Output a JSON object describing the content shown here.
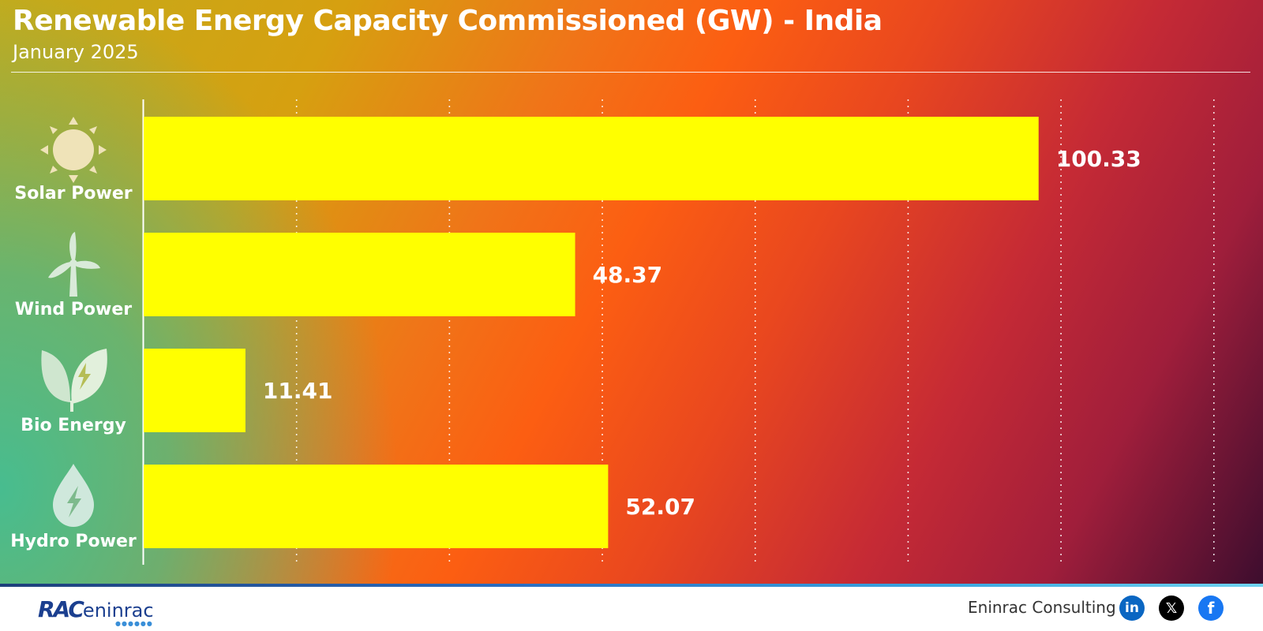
{
  "chart_data": {
    "type": "bar",
    "orientation": "horizontal",
    "title": "Renewable Energy Capacity Commissioned (GW) - India",
    "subtitle": "January 2025",
    "categories": [
      "Solar Power",
      "Wind Power",
      "Bio Energy",
      "Hydro Power"
    ],
    "icons": [
      "sun-icon",
      "wind-turbine-icon",
      "leaf-bolt-icon",
      "water-drop-bolt-icon"
    ],
    "values": [
      100.33,
      48.37,
      11.41,
      52.07
    ],
    "value_labels": [
      "100.33",
      "48.37",
      "11.41",
      "52.07"
    ],
    "xlim": [
      0,
      120
    ],
    "grid_step": 17.14,
    "grid": true,
    "bar_color": "#ffff00"
  },
  "footer": {
    "logo_text_rac": "RAC",
    "logo_text_eninrac": "eninrac",
    "company": "Eninrac Consulting",
    "social": [
      "linkedin-icon",
      "x-icon",
      "facebook-icon"
    ]
  }
}
